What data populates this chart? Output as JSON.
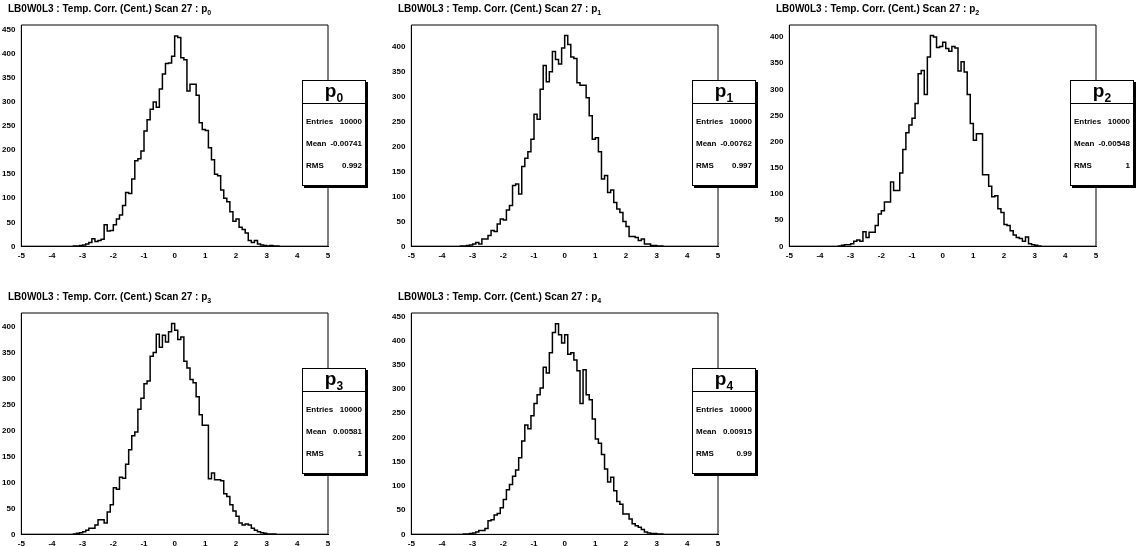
{
  "chart_data": [
    {
      "type": "histogram",
      "title": "LB0W0L3 : Temp. Corr. (Cent.) Scan 27 : p$_{0}$",
      "annotations": [
        "p$_{0}$",
        "Entries",
        "10000",
        "Mean",
        "-0.00741",
        "RMS",
        "0.992"
      ],
      "bins": [
        -5,
        -4.9,
        -4.8,
        -4.7,
        -4.6,
        -4.5,
        -4.4,
        -4.3,
        -4.2,
        -4.1,
        -4,
        -3.9,
        -3.8,
        -3.7,
        -3.6,
        -3.5,
        -3.4,
        -3.3,
        -3.2,
        -3.1,
        -3,
        -2.9,
        -2.8,
        -2.7,
        -2.6,
        -2.5,
        -2.4,
        -2.3,
        -2.2,
        -2.1,
        -2,
        -1.9,
        -1.8,
        -1.7,
        -1.6,
        -1.5,
        -1.4,
        -1.3,
        -1.2,
        -1.1,
        -1,
        -0.9,
        -0.8,
        -0.7,
        -0.6,
        -0.5,
        -0.4,
        -0.3,
        -0.2,
        -0.1,
        0,
        0.1,
        0.2,
        0.3,
        0.4,
        0.5,
        0.6,
        0.7,
        0.8,
        0.9,
        1,
        1.1,
        1.2,
        1.3,
        1.4,
        1.5,
        1.6,
        1.7,
        1.8,
        1.9,
        2,
        2.1,
        2.2,
        2.3,
        2.4,
        2.5,
        2.6,
        2.7,
        2.8,
        2.9,
        3,
        3.1,
        3.2,
        3.3,
        3.4,
        3.5,
        3.6,
        3.7,
        3.8,
        3.9,
        4,
        4.1,
        4.2,
        4.3,
        4.4,
        4.5,
        4.6,
        4.7,
        4.8,
        4.9,
        5
      ],
      "values": [
        0,
        0,
        0,
        0,
        0,
        0,
        0,
        0,
        0,
        0,
        0,
        0,
        0,
        0,
        0,
        0,
        0,
        1,
        1,
        2,
        3,
        5,
        8,
        16,
        10,
        12,
        15,
        45,
        32,
        33,
        45,
        57,
        65,
        85,
        112,
        110,
        140,
        178,
        182,
        198,
        240,
        263,
        285,
        300,
        289,
        327,
        358,
        380,
        381,
        395,
        437,
        434,
        392,
        388,
        323,
        337,
        337,
        314,
        257,
        243,
        241,
        205,
        180,
        150,
        147,
        117,
        100,
        93,
        72,
        52,
        57,
        40,
        35,
        28,
        12,
        8,
        12,
        5,
        3,
        2,
        1,
        2,
        1,
        1,
        0,
        0,
        0,
        0,
        0,
        0,
        0,
        0,
        0,
        0,
        0,
        0,
        0,
        0,
        0,
        0
      ],
      "color": "#000000",
      "xlim": [
        -5,
        5
      ],
      "xticks": [
        -5,
        -4,
        -3,
        -2,
        -1,
        0,
        1,
        2,
        3,
        4,
        5
      ],
      "ylim": [
        0,
        460
      ],
      "yticks": [
        0,
        50,
        100,
        150,
        200,
        250,
        300,
        350,
        400,
        450
      ],
      "grid": false,
      "legend": false
    },
    {
      "type": "histogram",
      "title": "LB0W0L3 : Temp. Corr. (Cent.) Scan 27 : p$_{1}$",
      "annotations": [
        "p$_{1}$",
        "Entries",
        "10000",
        "Mean",
        "-0.00762",
        "RMS",
        "0.997"
      ],
      "bins": [
        -5,
        -4.9,
        -4.8,
        -4.7,
        -4.6,
        -4.5,
        -4.4,
        -4.3,
        -4.2,
        -4.1,
        -4,
        -3.9,
        -3.8,
        -3.7,
        -3.6,
        -3.5,
        -3.4,
        -3.3,
        -3.2,
        -3.1,
        -3,
        -2.9,
        -2.8,
        -2.7,
        -2.6,
        -2.5,
        -2.4,
        -2.3,
        -2.2,
        -2.1,
        -2,
        -1.9,
        -1.8,
        -1.7,
        -1.6,
        -1.5,
        -1.4,
        -1.3,
        -1.2,
        -1.1,
        -1,
        -0.9,
        -0.8,
        -0.7,
        -0.6,
        -0.5,
        -0.4,
        -0.3,
        -0.2,
        -0.1,
        0,
        0.1,
        0.2,
        0.3,
        0.4,
        0.5,
        0.6,
        0.7,
        0.8,
        0.9,
        1,
        1.1,
        1.2,
        1.3,
        1.4,
        1.5,
        1.6,
        1.7,
        1.8,
        1.9,
        2,
        2.1,
        2.2,
        2.3,
        2.4,
        2.5,
        2.6,
        2.7,
        2.8,
        2.9,
        3,
        3.1,
        3.2,
        3.3,
        3.4,
        3.5,
        3.6,
        3.7,
        3.8,
        3.9,
        4,
        4.1,
        4.2,
        4.3,
        4.4,
        4.5,
        4.6,
        4.7,
        4.8,
        4.9,
        5
      ],
      "values": [
        0,
        0,
        0,
        0,
        0,
        0,
        0,
        0,
        0,
        0,
        0,
        0,
        0,
        0,
        0,
        0,
        1,
        1,
        2,
        3,
        5,
        8,
        5,
        15,
        15,
        22,
        32,
        30,
        45,
        55,
        53,
        73,
        82,
        122,
        125,
        105,
        160,
        177,
        190,
        215,
        265,
        255,
        315,
        363,
        330,
        350,
        391,
        375,
        366,
        398,
        423,
        405,
        380,
        377,
        328,
        323,
        323,
        298,
        262,
        215,
        218,
        190,
        135,
        142,
        108,
        113,
        88,
        75,
        68,
        50,
        40,
        20,
        20,
        18,
        12,
        15,
        5,
        5,
        2,
        2,
        1,
        1,
        0,
        0,
        0,
        0,
        0,
        0,
        0,
        0,
        0,
        0,
        0,
        0,
        0,
        0,
        0,
        0,
        0,
        0
      ],
      "color": "#000000",
      "xlim": [
        -5,
        5
      ],
      "xticks": [
        -5,
        -4,
        -3,
        -2,
        -1,
        0,
        1,
        2,
        3,
        4,
        5
      ],
      "ylim": [
        0,
        444
      ],
      "yticks": [
        0,
        50,
        100,
        150,
        200,
        250,
        300,
        350,
        400
      ],
      "grid": false,
      "legend": false
    },
    {
      "type": "histogram",
      "title": "LB0W0L3 : Temp. Corr. (Cent.) Scan 27 : p$_{2}$",
      "annotations": [
        "p$_{2}$",
        "Entries",
        "10000",
        "Mean",
        "-0.00548",
        "RMS",
        "1"
      ],
      "bins": [
        -5,
        -4.9,
        -4.8,
        -4.7,
        -4.6,
        -4.5,
        -4.4,
        -4.3,
        -4.2,
        -4.1,
        -4,
        -3.9,
        -3.8,
        -3.7,
        -3.6,
        -3.5,
        -3.4,
        -3.3,
        -3.2,
        -3.1,
        -3,
        -2.9,
        -2.8,
        -2.7,
        -2.6,
        -2.5,
        -2.4,
        -2.3,
        -2.2,
        -2.1,
        -2,
        -1.9,
        -1.8,
        -1.7,
        -1.6,
        -1.5,
        -1.4,
        -1.3,
        -1.2,
        -1.1,
        -1,
        -0.9,
        -0.8,
        -0.7,
        -0.6,
        -0.5,
        -0.4,
        -0.3,
        -0.2,
        -0.1,
        0,
        0.1,
        0.2,
        0.3,
        0.4,
        0.5,
        0.6,
        0.7,
        0.8,
        0.9,
        1,
        1.1,
        1.2,
        1.3,
        1.4,
        1.5,
        1.6,
        1.7,
        1.8,
        1.9,
        2,
        2.1,
        2.2,
        2.3,
        2.4,
        2.5,
        2.6,
        2.7,
        2.8,
        2.9,
        3,
        3.1,
        3.2,
        3.3,
        3.4,
        3.5,
        3.6,
        3.7,
        3.8,
        3.9,
        4,
        4.1,
        4.2,
        4.3,
        4.4,
        4.5,
        4.6,
        4.7,
        4.8,
        4.9,
        5
      ],
      "values": [
        0,
        0,
        0,
        0,
        0,
        0,
        0,
        0,
        0,
        0,
        0,
        0,
        0,
        0,
        0,
        0,
        1,
        2,
        3,
        3,
        5,
        10,
        12,
        10,
        28,
        17,
        27,
        27,
        40,
        62,
        68,
        85,
        85,
        123,
        107,
        107,
        140,
        185,
        217,
        232,
        245,
        273,
        330,
        336,
        290,
        362,
        403,
        400,
        380,
        382,
        390,
        378,
        373,
        382,
        379,
        335,
        353,
        333,
        290,
        235,
        203,
        215,
        215,
        137,
        137,
        115,
        95,
        97,
        72,
        65,
        42,
        40,
        30,
        22,
        17,
        15,
        10,
        18,
        5,
        3,
        2,
        1,
        0,
        0,
        0,
        0,
        0,
        0,
        0,
        0,
        0,
        0,
        0,
        0,
        0,
        0,
        0,
        0,
        0,
        0
      ],
      "color": "#000000",
      "xlim": [
        -5,
        5
      ],
      "xticks": [
        -5,
        -4,
        -3,
        -2,
        -1,
        0,
        1,
        2,
        3,
        4,
        5
      ],
      "ylim": [
        0,
        423
      ],
      "yticks": [
        0,
        50,
        100,
        150,
        200,
        250,
        300,
        350,
        400
      ],
      "grid": false,
      "legend": false
    },
    {
      "type": "histogram",
      "title": "LB0W0L3 : Temp. Corr. (Cent.) Scan 27 : p$_{3}$",
      "annotations": [
        "p$_{3}$",
        "Entries",
        "10000",
        "Mean",
        "0.00581",
        "RMS",
        "1"
      ],
      "bins": [
        -5,
        -4.9,
        -4.8,
        -4.7,
        -4.6,
        -4.5,
        -4.4,
        -4.3,
        -4.2,
        -4.1,
        -4,
        -3.9,
        -3.8,
        -3.7,
        -3.6,
        -3.5,
        -3.4,
        -3.3,
        -3.2,
        -3.1,
        -3,
        -2.9,
        -2.8,
        -2.7,
        -2.6,
        -2.5,
        -2.4,
        -2.3,
        -2.2,
        -2.1,
        -2,
        -1.9,
        -1.8,
        -1.7,
        -1.6,
        -1.5,
        -1.4,
        -1.3,
        -1.2,
        -1.1,
        -1,
        -0.9,
        -0.8,
        -0.7,
        -0.6,
        -0.5,
        -0.4,
        -0.3,
        -0.2,
        -0.1,
        0,
        0.1,
        0.2,
        0.3,
        0.4,
        0.5,
        0.6,
        0.7,
        0.8,
        0.9,
        1,
        1.1,
        1.2,
        1.3,
        1.4,
        1.5,
        1.6,
        1.7,
        1.8,
        1.9,
        2,
        2.1,
        2.2,
        2.3,
        2.4,
        2.5,
        2.6,
        2.7,
        2.8,
        2.9,
        3,
        3.1,
        3.2,
        3.3,
        3.4,
        3.5,
        3.6,
        3.7,
        3.8,
        3.9,
        4,
        4.1,
        4.2,
        4.3,
        4.4,
        4.5,
        4.6,
        4.7,
        4.8,
        4.9,
        5
      ],
      "values": [
        0,
        0,
        0,
        0,
        0,
        0,
        0,
        0,
        0,
        0,
        0,
        0,
        0,
        0,
        0,
        0,
        0,
        1,
        2,
        3,
        5,
        8,
        12,
        12,
        18,
        28,
        28,
        22,
        43,
        57,
        90,
        87,
        110,
        108,
        135,
        163,
        190,
        197,
        241,
        262,
        290,
        295,
        343,
        350,
        385,
        360,
        383,
        370,
        390,
        406,
        393,
        375,
        380,
        333,
        320,
        298,
        292,
        265,
        230,
        210,
        210,
        107,
        118,
        105,
        105,
        103,
        78,
        73,
        57,
        45,
        35,
        22,
        18,
        20,
        18,
        12,
        8,
        5,
        3,
        2,
        1,
        1,
        1,
        0,
        0,
        0,
        0,
        0,
        0,
        0,
        0,
        0,
        0,
        0,
        0,
        0,
        0,
        0,
        0,
        0
      ],
      "color": "#000000",
      "xlim": [
        -5,
        5
      ],
      "xticks": [
        -5,
        -4,
        -3,
        -2,
        -1,
        0,
        1,
        2,
        3,
        4,
        5
      ],
      "ylim": [
        0,
        426
      ],
      "yticks": [
        0,
        50,
        100,
        150,
        200,
        250,
        300,
        350,
        400
      ],
      "grid": false,
      "legend": false
    },
    {
      "type": "histogram",
      "title": "LB0W0L3 : Temp. Corr. (Cent.) Scan 27 : p$_{4}$",
      "annotations": [
        "p$_{4}$",
        "Entries",
        "10000",
        "Mean",
        "0.00915",
        "RMS",
        "0.99"
      ],
      "bins": [
        -5,
        -4.9,
        -4.8,
        -4.7,
        -4.6,
        -4.5,
        -4.4,
        -4.3,
        -4.2,
        -4.1,
        -4,
        -3.9,
        -3.8,
        -3.7,
        -3.6,
        -3.5,
        -3.4,
        -3.3,
        -3.2,
        -3.1,
        -3,
        -2.9,
        -2.8,
        -2.7,
        -2.6,
        -2.5,
        -2.4,
        -2.3,
        -2.2,
        -2.1,
        -2,
        -1.9,
        -1.8,
        -1.7,
        -1.6,
        -1.5,
        -1.4,
        -1.3,
        -1.2,
        -1.1,
        -1,
        -0.9,
        -0.8,
        -0.7,
        -0.6,
        -0.5,
        -0.4,
        -0.3,
        -0.2,
        -0.1,
        0,
        0.1,
        0.2,
        0.3,
        0.4,
        0.5,
        0.6,
        0.7,
        0.8,
        0.9,
        1,
        1.1,
        1.2,
        1.3,
        1.4,
        1.5,
        1.6,
        1.7,
        1.8,
        1.9,
        2,
        2.1,
        2.2,
        2.3,
        2.4,
        2.5,
        2.6,
        2.7,
        2.8,
        2.9,
        3,
        3.1,
        3.2,
        3.3,
        3.4,
        3.5,
        3.6,
        3.7,
        3.8,
        3.9,
        4,
        4.1,
        4.2,
        4.3,
        4.4,
        4.5,
        4.6,
        4.7,
        4.8,
        4.9,
        5
      ],
      "values": [
        0,
        0,
        0,
        0,
        0,
        0,
        0,
        0,
        0,
        0,
        0,
        0,
        0,
        0,
        0,
        0,
        0,
        1,
        1,
        2,
        3,
        5,
        8,
        8,
        12,
        28,
        30,
        40,
        43,
        55,
        72,
        92,
        103,
        120,
        133,
        158,
        193,
        226,
        218,
        245,
        270,
        288,
        302,
        345,
        333,
        375,
        417,
        435,
        412,
        395,
        412,
        372,
        375,
        360,
        338,
        270,
        340,
        288,
        278,
        238,
        197,
        188,
        165,
        135,
        108,
        118,
        90,
        68,
        62,
        42,
        42,
        32,
        22,
        18,
        15,
        10,
        5,
        3,
        2,
        2,
        1,
        1,
        0,
        0,
        0,
        0,
        0,
        0,
        0,
        0,
        0,
        0,
        0,
        0,
        0,
        0,
        0,
        0,
        0,
        0
      ],
      "color": "#000000",
      "xlim": [
        -5,
        5
      ],
      "xticks": [
        -5,
        -4,
        -3,
        -2,
        -1,
        0,
        1,
        2,
        3,
        4,
        5
      ],
      "ylim": [
        0,
        457
      ],
      "yticks": [
        0,
        50,
        100,
        150,
        200,
        250,
        300,
        350,
        400,
        450
      ],
      "grid": false,
      "legend": false
    }
  ]
}
